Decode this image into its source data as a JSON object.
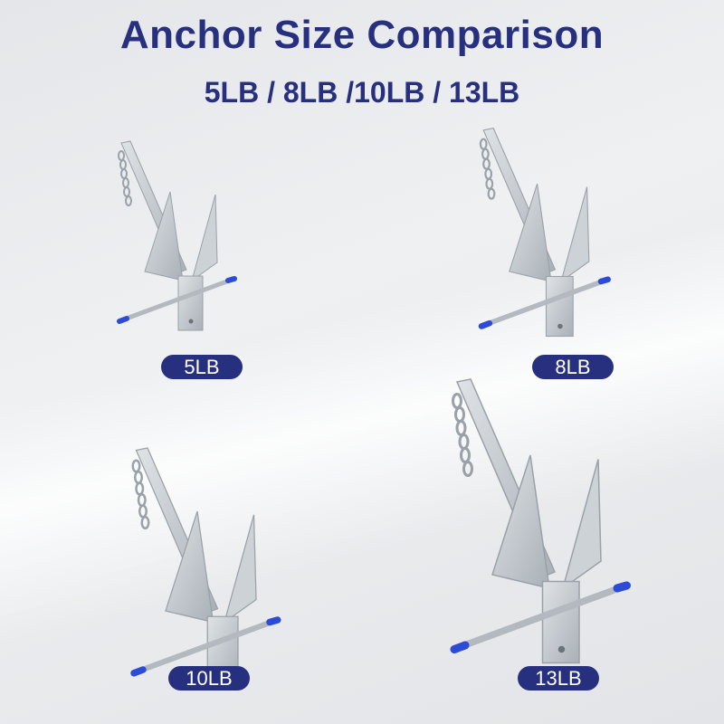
{
  "title": "Anchor Size Comparison",
  "subtitle": "5LB / 8LB /10LB / 13LB",
  "colors": {
    "accent": "#27307f",
    "anchor_metal": "#c4c9ce",
    "cap": "#2c4bd6"
  },
  "anchors": [
    {
      "label": "5LB"
    },
    {
      "label": "8LB"
    },
    {
      "label": "10LB"
    },
    {
      "label": "13LB"
    }
  ]
}
